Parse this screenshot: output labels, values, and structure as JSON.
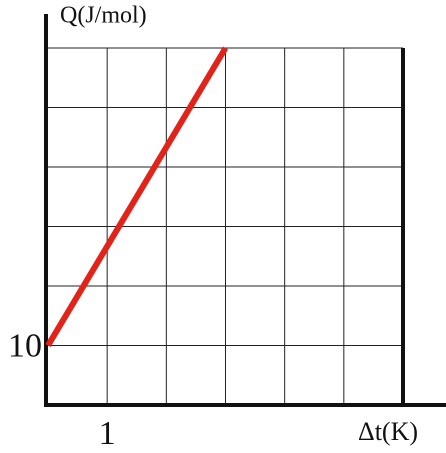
{
  "chart_data": {
    "type": "line",
    "title": "Q(J/mol)",
    "x_label": "Δt(K)",
    "x": [
      0,
      3
    ],
    "series": [
      {
        "color": "#e2231a",
        "values": [
          10,
          60
        ]
      }
    ],
    "xlim": [
      0,
      6
    ],
    "ylim": [
      0,
      60
    ],
    "xticks": [
      1
    ],
    "yticks": [
      10
    ],
    "xgrid": [
      1,
      2,
      3,
      4,
      5
    ],
    "ygrid": [
      10,
      20,
      30,
      40,
      50,
      60
    ],
    "grid": true
  }
}
